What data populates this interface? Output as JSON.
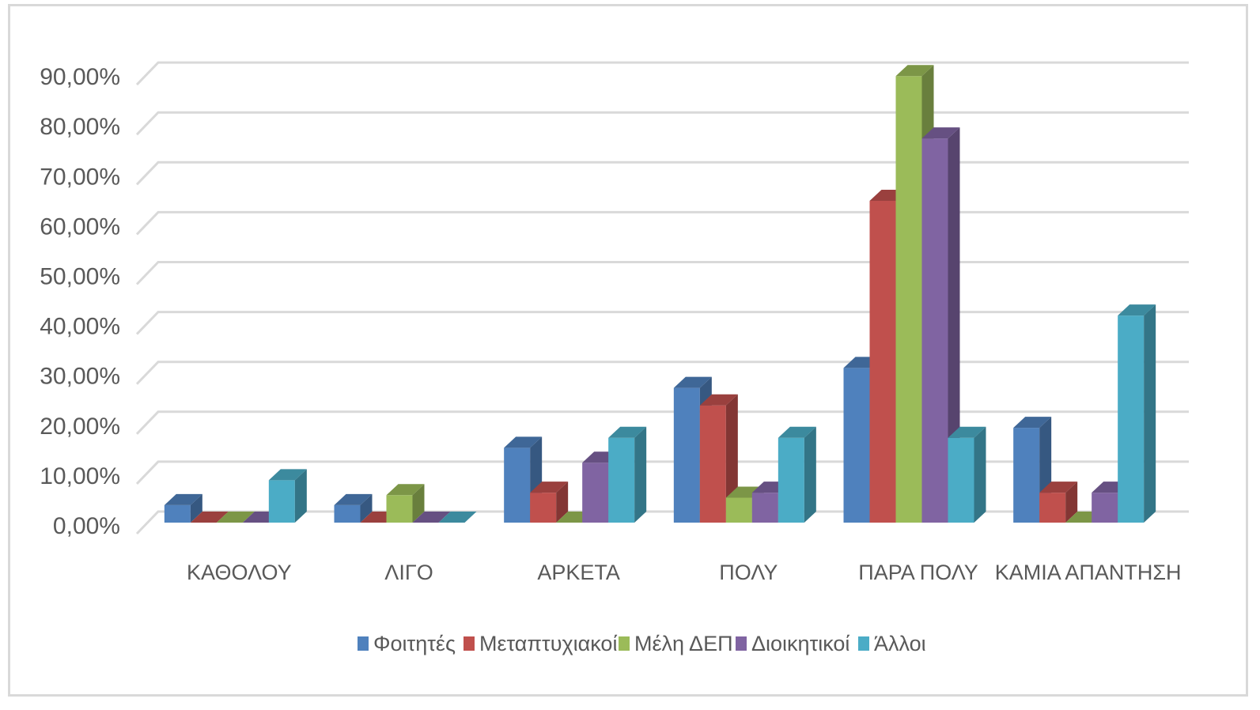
{
  "chart_data": {
    "type": "bar",
    "categories": [
      "ΚΑΘΟΛΟΥ",
      "ΛΙΓΟ",
      "ΑΡΚΕΤΑ",
      "ΠΟΛΥ",
      "ΠΑΡΑ ΠΟΛΥ",
      "ΚΑΜΙΑ ΑΠΑΝΤΗΣΗ"
    ],
    "series": [
      {
        "name": "Φοιτητές",
        "color": "#4f81bd",
        "values": [
          3.5,
          3.5,
          15,
          27,
          31,
          19
        ]
      },
      {
        "name": "Μεταπτυχιακοί",
        "color": "#c0504d",
        "values": [
          0,
          0,
          6,
          23.5,
          64.5,
          6
        ]
      },
      {
        "name": "Μέλη ΔΕΠ",
        "color": "#9bbb59",
        "values": [
          0,
          5.5,
          0,
          5,
          89.5,
          0
        ]
      },
      {
        "name": "Διοικητικοί",
        "color": "#8064a2",
        "values": [
          0,
          0,
          12,
          6,
          77,
          6
        ]
      },
      {
        "name": "Άλλοι",
        "color": "#4bacc6",
        "values": [
          8.5,
          0,
          17,
          17,
          17,
          41.5
        ]
      }
    ],
    "y_ticks": [
      "0,00%",
      "10,00%",
      "20,00%",
      "30,00%",
      "40,00%",
      "50,00%",
      "60,00%",
      "70,00%",
      "80,00%",
      "90,00%"
    ],
    "ylim": [
      0,
      95
    ],
    "grid": true,
    "style": "3d-clustered-column",
    "legend_position": "bottom"
  }
}
